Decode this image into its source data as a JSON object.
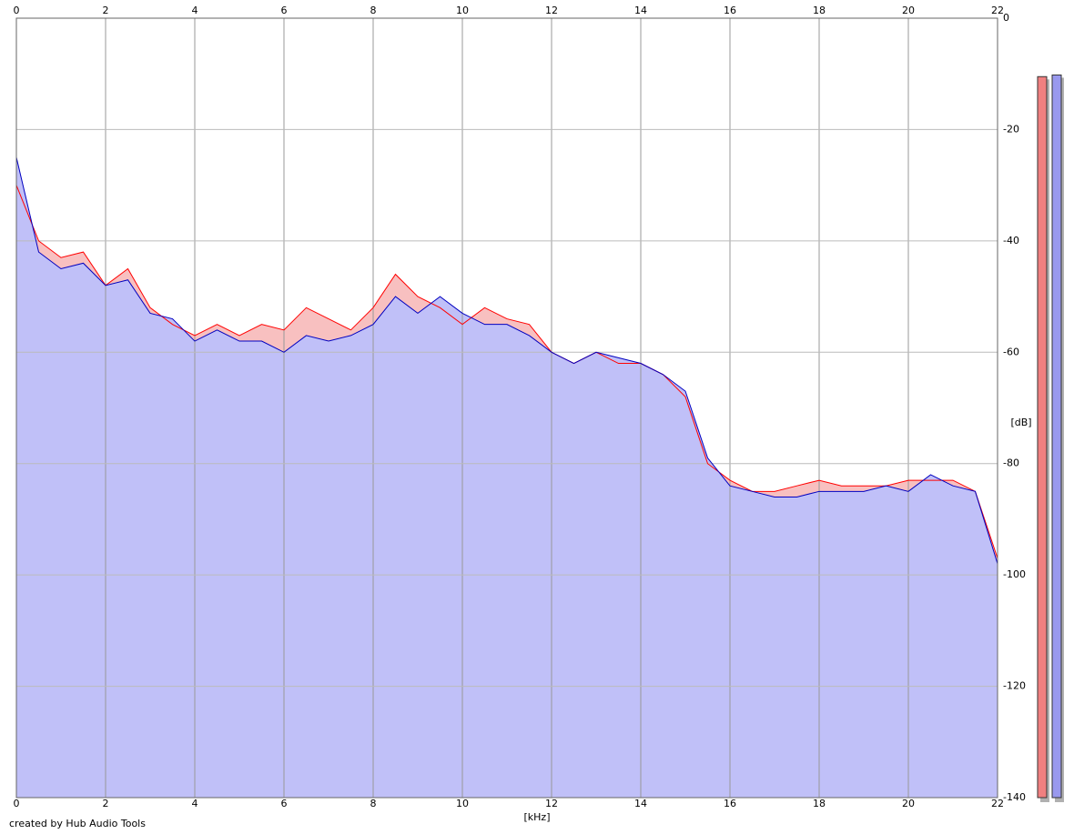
{
  "chart_data": {
    "type": "spectrum",
    "x_label": "[kHz]",
    "y_label": "[dB]",
    "credit": "created by Hub Audio Tools",
    "xlim": [
      0,
      22
    ],
    "xticks": [
      0,
      2,
      4,
      6,
      8,
      10,
      12,
      14,
      16,
      18,
      20,
      22
    ],
    "ylim": [
      -140,
      0
    ],
    "yticks": [
      0,
      -20,
      -40,
      -60,
      -80,
      -100,
      -120,
      -140
    ],
    "grid": true,
    "x": [
      0,
      0.5,
      1,
      1.5,
      2,
      2.5,
      3,
      3.5,
      4,
      4.5,
      5,
      5.5,
      6,
      6.5,
      7,
      7.5,
      8,
      8.5,
      9,
      9.5,
      10,
      10.5,
      11,
      11.5,
      12,
      12.5,
      13,
      13.5,
      14,
      14.5,
      15,
      15.5,
      16,
      16.5,
      17,
      17.5,
      18,
      18.5,
      19,
      19.5,
      20,
      20.5,
      21,
      21.5,
      22
    ],
    "series": [
      {
        "color": "#ff0000",
        "fill": "#f8c0c0",
        "values": [
          -30,
          -40,
          -43,
          -42,
          -48,
          -45,
          -52,
          -55,
          -57,
          -55,
          -57,
          -55,
          -56,
          -52,
          -54,
          -56,
          -52,
          -46,
          -50,
          -52,
          -55,
          -52,
          -54,
          -55,
          -60,
          -62,
          -60,
          -62,
          -62,
          -64,
          -68,
          -80,
          -83,
          -85,
          -85,
          -84,
          -83,
          -84,
          -84,
          -84,
          -83,
          -83,
          -83,
          -85,
          -97
        ]
      },
      {
        "color": "#0000c0",
        "fill": "#c0c0f8",
        "values": [
          -25,
          -42,
          -45,
          -44,
          -48,
          -47,
          -53,
          -54,
          -58,
          -56,
          -58,
          -58,
          -60,
          -57,
          -58,
          -57,
          -55,
          -50,
          -53,
          -50,
          -53,
          -55,
          -55,
          -57,
          -60,
          -62,
          -60,
          -61,
          -62,
          -64,
          -67,
          -79,
          -84,
          -85,
          -86,
          -86,
          -85,
          -85,
          -85,
          -84,
          -85,
          -82,
          -84,
          -85,
          -98
        ]
      }
    ],
    "level_meters": [
      {
        "color": "#f08080",
        "value": -10.5
      },
      {
        "color": "#9999ee",
        "value": -10.2
      }
    ]
  }
}
